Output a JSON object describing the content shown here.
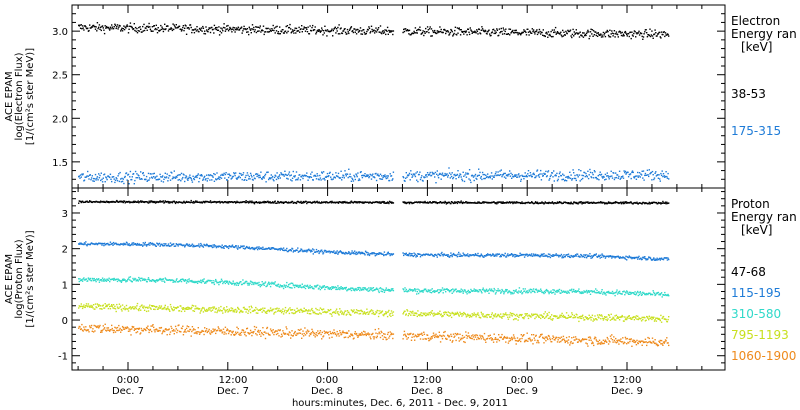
{
  "chart_data": [
    {
      "type": "scatter",
      "instrument": "ACE EPAM",
      "ylabel": [
        "ACE EPAM",
        "log(Electron Flux)",
        "[1/(cm²s ster MeV)]"
      ],
      "yticks": [
        "3.0",
        "2.5",
        "2.0",
        "1.5"
      ],
      "ylim": [
        1.2,
        3.3
      ],
      "legend_title": [
        "Electron",
        "Energy ran",
        "[keV]"
      ],
      "series": [
        {
          "name": "38-53",
          "color": "#000000",
          "start": 3.05,
          "end": 2.97,
          "noise": 0.05
        },
        {
          "name": "175-315",
          "color": "#1e7bd7",
          "start": 1.33,
          "end": 1.36,
          "noise": 0.06
        }
      ]
    },
    {
      "type": "scatter",
      "instrument": "ACE EPAM",
      "ylabel": [
        "ACE EPAM",
        "log(Proton Flux)",
        "[1/(cm²s ster MeV)]"
      ],
      "yticks": [
        "3",
        "2",
        "1",
        "0",
        "-1"
      ],
      "ylim": [
        -1.4,
        3.7
      ],
      "legend_title": [
        "Proton",
        "Energy ran",
        "[keV]"
      ],
      "series": [
        {
          "name": "47-68",
          "color": "#000000",
          "start": 3.33,
          "end": 3.3,
          "noise": 0.03
        },
        {
          "name": "115-195",
          "color": "#1e7bd7",
          "start": 2.15,
          "end": 1.7,
          "noise": 0.05
        },
        {
          "name": "310-580",
          "color": "#2fd9c9",
          "start": 1.15,
          "end": 0.7,
          "noise": 0.07
        },
        {
          "name": "795-1193",
          "color": "#c8e01e",
          "start": 0.4,
          "end": 0.05,
          "noise": 0.09
        },
        {
          "name": "1060-1900",
          "color": "#ee8a1c",
          "start": -0.2,
          "end": -0.6,
          "noise": 0.13
        }
      ]
    }
  ],
  "x_axis": {
    "xlabel": "hours:minutes, Dec.  6, 2011 - Dec.  9, 2011",
    "ticks": [
      {
        "time": "0:00",
        "day": "Dec. 7"
      },
      {
        "time": "12:00",
        "day": "Dec. 7"
      },
      {
        "time": "0:00",
        "day": "Dec. 8"
      },
      {
        "time": "12:00",
        "day": "Dec. 8"
      },
      {
        "time": "0:00",
        "day": "Dec. 9"
      },
      {
        "time": "12:00",
        "day": "Dec. 9"
      }
    ]
  }
}
